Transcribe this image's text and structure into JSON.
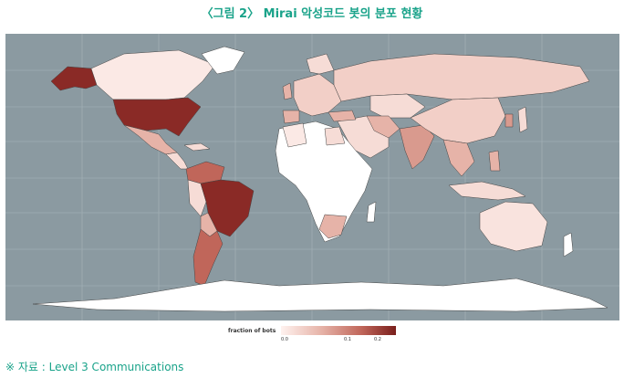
{
  "caption": "〈그림 2〉 Mirai 악성코드 봇의 분포 현황",
  "legend": {
    "title": "fraction of bots",
    "ticks": [
      "0.0",
      "0.1",
      "0.2"
    ]
  },
  "source": "※ 자료 : Level 3 Communications",
  "colors": {
    "ocean": "#8b9aa1",
    "none": "#ffffff",
    "low": "#f6dcd6",
    "mid": "#d99a8e",
    "high": "#8a2a26"
  }
}
